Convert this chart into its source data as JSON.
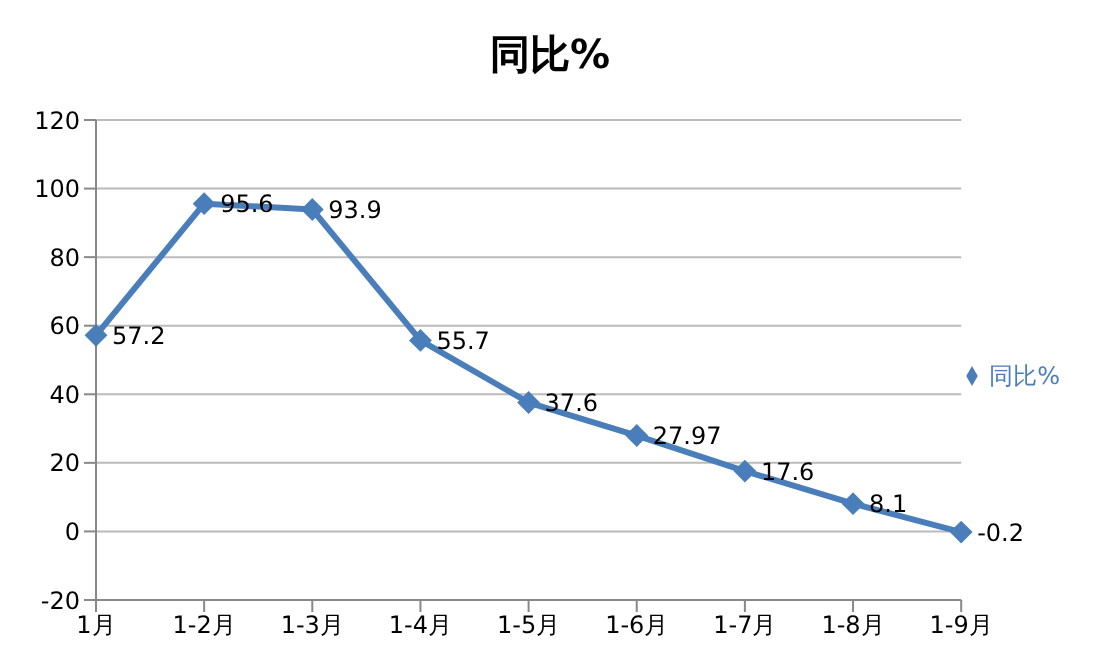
{
  "chart_data": {
    "type": "line",
    "title": "同比%",
    "categories": [
      "1月",
      "1-2月",
      "1-3月",
      "1-4月",
      "1-5月",
      "1-6月",
      "1-7月",
      "1-8月",
      "1-9月"
    ],
    "series": [
      {
        "name": "同比%",
        "color": "#4a7ebb",
        "values": [
          57.2,
          95.6,
          93.9,
          55.7,
          37.6,
          27.97,
          17.6,
          8.1,
          -0.2
        ]
      }
    ],
    "ylim": [
      -20,
      120
    ],
    "yticks": [
      -20,
      0,
      20,
      40,
      60,
      80,
      100,
      120
    ],
    "grid": "y",
    "legend": "right",
    "marker": "diamond",
    "line_style": "solid",
    "data_labels": true
  }
}
